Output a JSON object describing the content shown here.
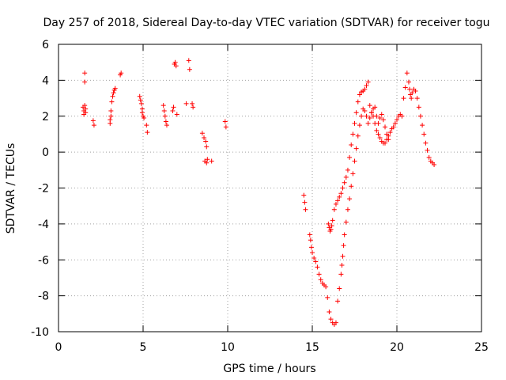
{
  "chart_data": {
    "type": "scatter",
    "title": "Day 257 of 2018, Sidereal Day-to-day VTEC variation (SDTVAR) for receiver togu",
    "xlabel": "GPS time / hours",
    "ylabel": "SDTVAR / TECUs",
    "xlim": [
      0,
      25
    ],
    "ylim": [
      -10,
      6
    ],
    "xticks": [
      0,
      5,
      10,
      15,
      20,
      25
    ],
    "yticks": [
      -10,
      -8,
      -6,
      -4,
      -2,
      0,
      2,
      4,
      6
    ],
    "xtick_labels": [
      "0",
      "5",
      "10",
      "15",
      "20",
      "25"
    ],
    "ytick_labels": [
      "-10",
      "-8",
      "-6",
      "-4",
      "-2",
      "0",
      "2",
      "4",
      "6"
    ],
    "grid": true,
    "marker": "+",
    "color": "#ff0000",
    "series": [
      {
        "name": "SDTVAR",
        "x": [
          1.45,
          1.5,
          1.5,
          1.55,
          1.55,
          1.6,
          1.6,
          1.55,
          2.05,
          2.1,
          3.05,
          3.05,
          3.1,
          3.1,
          3.15,
          3.2,
          3.25,
          3.3,
          3.35,
          3.65,
          3.7,
          4.8,
          4.85,
          4.9,
          4.95,
          4.95,
          5.0,
          5.05,
          5.2,
          5.25,
          6.2,
          6.25,
          6.3,
          6.35,
          6.4,
          6.75,
          6.8,
          6.85,
          6.9,
          6.95,
          7.0,
          7.55,
          7.7,
          7.75,
          7.9,
          7.95,
          8.5,
          8.6,
          8.7,
          8.75,
          8.8,
          8.75,
          8.65,
          9.05,
          9.85,
          9.9,
          14.5,
          14.55,
          14.6,
          14.85,
          14.9,
          14.95,
          15.0,
          15.1,
          15.2,
          15.3,
          15.4,
          15.5,
          15.6,
          15.7,
          15.8,
          15.9,
          16.0,
          16.1,
          16.2,
          16.3,
          16.4,
          16.5,
          16.6,
          16.7,
          16.75,
          16.8,
          16.85,
          16.9,
          17.0,
          17.1,
          17.2,
          17.3,
          17.4,
          17.5,
          17.6,
          17.7,
          17.8,
          17.9,
          18.0,
          18.1,
          18.2,
          18.3,
          18.4,
          18.5,
          18.6,
          18.7,
          18.8,
          18.9,
          19.0,
          19.1,
          19.2,
          19.3,
          19.4,
          19.5,
          19.6,
          19.7,
          19.8,
          19.9,
          20.0,
          20.1,
          20.2,
          20.3,
          20.4,
          20.5,
          20.6,
          20.7,
          20.75,
          20.8,
          20.85,
          20.9,
          21.0,
          21.1,
          21.2,
          21.3,
          21.4,
          21.5,
          21.6,
          21.7,
          21.8,
          21.9,
          22.0,
          22.1,
          22.2,
          15.95,
          16.0,
          16.05,
          16.1,
          16.15,
          16.2,
          16.3,
          16.4,
          16.5,
          16.6,
          16.7,
          16.8,
          16.9,
          17.0,
          17.1,
          17.2,
          17.3,
          17.4,
          17.5,
          17.6,
          17.7,
          17.8,
          17.9,
          18.0,
          18.1,
          18.2,
          18.3,
          18.4,
          18.5,
          18.6,
          18.7,
          18.8,
          18.9,
          19.0,
          19.1,
          19.2,
          19.3,
          19.4,
          19.5
        ],
        "y": [
          2.5,
          2.3,
          2.1,
          4.4,
          3.9,
          2.4,
          2.2,
          2.6,
          1.75,
          1.5,
          1.8,
          1.6,
          2.0,
          2.3,
          2.8,
          3.1,
          3.3,
          3.45,
          3.55,
          4.3,
          4.4,
          3.1,
          2.9,
          2.7,
          2.4,
          2.2,
          2.0,
          1.9,
          1.5,
          1.1,
          2.6,
          2.3,
          2.0,
          1.7,
          1.5,
          2.3,
          2.5,
          4.9,
          5.0,
          4.8,
          2.1,
          2.7,
          5.1,
          4.6,
          2.7,
          2.5,
          1.05,
          0.8,
          0.6,
          0.3,
          -0.4,
          -0.6,
          -0.5,
          -0.5,
          1.7,
          1.4,
          -2.4,
          -2.8,
          -3.2,
          -4.6,
          -4.9,
          -5.3,
          -5.6,
          -5.9,
          -6.1,
          -6.4,
          -6.8,
          -7.1,
          -7.3,
          -7.4,
          -7.5,
          -8.1,
          -8.9,
          -9.3,
          -9.5,
          -9.6,
          -9.5,
          -8.3,
          -7.6,
          -6.8,
          -6.3,
          -5.8,
          -5.2,
          -4.6,
          -3.9,
          -3.2,
          -2.6,
          -1.9,
          -1.2,
          -0.5,
          0.2,
          0.9,
          1.5,
          2.0,
          2.4,
          2.3,
          2.0,
          1.6,
          1.9,
          2.2,
          2.0,
          1.6,
          1.2,
          1.0,
          0.8,
          0.6,
          0.5,
          0.5,
          0.7,
          0.9,
          1.1,
          1.3,
          1.4,
          1.6,
          1.8,
          2.0,
          2.1,
          2.0,
          3.0,
          3.6,
          4.4,
          3.9,
          3.5,
          3.2,
          3.0,
          3.3,
          3.5,
          3.4,
          3.0,
          2.5,
          2.0,
          1.5,
          1.0,
          0.5,
          0.1,
          -0.3,
          -0.5,
          -0.6,
          -0.7,
          -4.0,
          -4.2,
          -4.4,
          -4.3,
          -4.1,
          -3.8,
          -3.2,
          -2.9,
          -2.7,
          -2.5,
          -2.3,
          -2.0,
          -1.7,
          -1.4,
          -1.0,
          -0.3,
          0.4,
          1.0,
          1.6,
          2.2,
          2.8,
          3.2,
          3.35,
          3.4,
          3.5,
          3.7,
          3.9,
          2.6,
          2.2,
          2.4,
          2.5,
          2.0,
          1.6,
          1.9,
          2.1,
          1.8,
          1.4,
          1.0,
          0.7
        ]
      }
    ]
  }
}
